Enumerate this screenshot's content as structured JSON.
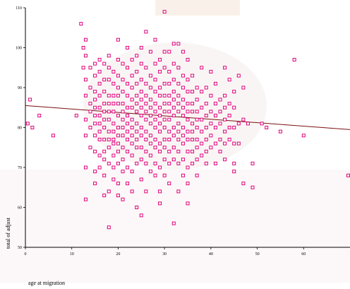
{
  "chart_data": {
    "type": "scatter",
    "title": "",
    "xlabel": "age at migration",
    "ylabel": "total of adjust",
    "xlim": [
      0,
      70
    ],
    "ylim": [
      50,
      110
    ],
    "xticks": [
      0,
      10,
      20,
      30,
      40,
      50,
      60
    ],
    "yticks": [
      50,
      60,
      70,
      80,
      90,
      100,
      110
    ],
    "grid": false,
    "colors": {
      "points": "#e0007a",
      "fit_line": "#7a1010",
      "watermark": "#f3e3e6"
    },
    "fit_line": {
      "x": [
        0,
        70
      ],
      "y": [
        85.5,
        79.5
      ]
    },
    "points": [
      [
        0.5,
        81
      ],
      [
        1,
        87
      ],
      [
        1.5,
        80
      ],
      [
        3,
        83
      ],
      [
        6,
        78
      ],
      [
        11,
        83
      ],
      [
        12,
        106
      ],
      [
        12.5,
        100
      ],
      [
        12.5,
        95
      ],
      [
        13,
        102
      ],
      [
        13,
        98
      ],
      [
        13,
        92
      ],
      [
        13,
        88
      ],
      [
        13,
        82
      ],
      [
        13,
        78
      ],
      [
        13,
        70
      ],
      [
        13,
        62
      ],
      [
        14,
        95
      ],
      [
        14,
        90
      ],
      [
        14,
        86
      ],
      [
        14,
        84
      ],
      [
        14,
        80
      ],
      [
        14,
        75
      ],
      [
        15,
        96
      ],
      [
        15,
        93
      ],
      [
        15,
        89
      ],
      [
        15,
        87
      ],
      [
        15,
        85
      ],
      [
        15,
        83
      ],
      [
        15,
        81
      ],
      [
        15,
        78
      ],
      [
        15,
        74
      ],
      [
        15,
        69
      ],
      [
        15,
        66
      ],
      [
        16,
        97
      ],
      [
        16,
        94
      ],
      [
        16,
        91
      ],
      [
        16,
        88
      ],
      [
        16,
        85
      ],
      [
        16,
        83
      ],
      [
        16,
        81
      ],
      [
        16,
        79
      ],
      [
        16,
        77
      ],
      [
        16,
        73
      ],
      [
        16,
        70
      ],
      [
        17,
        96
      ],
      [
        17,
        92
      ],
      [
        17,
        89
      ],
      [
        17,
        86
      ],
      [
        17,
        84
      ],
      [
        17,
        82
      ],
      [
        17,
        80
      ],
      [
        17,
        77
      ],
      [
        17,
        74
      ],
      [
        17,
        72
      ],
      [
        17,
        68
      ],
      [
        17,
        63
      ],
      [
        18,
        98
      ],
      [
        18,
        95
      ],
      [
        18,
        92
      ],
      [
        18,
        88
      ],
      [
        18,
        86
      ],
      [
        18,
        84
      ],
      [
        18,
        82
      ],
      [
        18,
        79
      ],
      [
        18,
        77
      ],
      [
        18,
        75
      ],
      [
        18,
        71
      ],
      [
        18,
        64
      ],
      [
        18,
        55
      ],
      [
        19,
        94
      ],
      [
        19,
        91
      ],
      [
        19,
        88
      ],
      [
        19,
        86
      ],
      [
        19,
        84
      ],
      [
        19,
        81
      ],
      [
        19,
        79
      ],
      [
        19,
        77
      ],
      [
        19,
        76
      ],
      [
        19,
        73
      ],
      [
        19,
        70
      ],
      [
        19,
        67
      ],
      [
        20,
        102
      ],
      [
        20,
        97
      ],
      [
        20,
        93
      ],
      [
        20,
        90
      ],
      [
        20,
        88
      ],
      [
        20,
        86
      ],
      [
        20,
        83
      ],
      [
        20,
        80
      ],
      [
        20,
        78
      ],
      [
        20,
        76
      ],
      [
        20,
        74
      ],
      [
        20,
        71
      ],
      [
        20,
        66
      ],
      [
        20,
        63
      ],
      [
        21,
        96
      ],
      [
        21,
        92
      ],
      [
        21,
        89
      ],
      [
        21,
        86
      ],
      [
        21,
        84
      ],
      [
        21,
        82
      ],
      [
        21,
        80
      ],
      [
        21,
        78
      ],
      [
        21,
        75
      ],
      [
        21,
        72
      ],
      [
        21,
        69
      ],
      [
        21,
        62
      ],
      [
        22,
        100
      ],
      [
        22,
        95
      ],
      [
        22,
        91
      ],
      [
        22,
        88
      ],
      [
        22,
        85
      ],
      [
        22,
        83
      ],
      [
        22,
        81
      ],
      [
        22,
        79
      ],
      [
        22,
        77
      ],
      [
        22,
        74
      ],
      [
        22,
        70
      ],
      [
        22,
        66
      ],
      [
        23,
        97
      ],
      [
        23,
        93
      ],
      [
        23,
        90
      ],
      [
        23,
        87
      ],
      [
        23,
        85
      ],
      [
        23,
        82
      ],
      [
        23,
        80
      ],
      [
        23,
        78
      ],
      [
        23,
        76
      ],
      [
        23,
        73
      ],
      [
        23,
        69
      ],
      [
        23,
        64
      ],
      [
        24,
        98
      ],
      [
        24,
        94
      ],
      [
        24,
        91
      ],
      [
        24,
        88
      ],
      [
        24,
        86
      ],
      [
        24,
        84
      ],
      [
        24,
        81
      ],
      [
        24,
        79
      ],
      [
        24,
        77
      ],
      [
        24,
        75
      ],
      [
        24,
        71
      ],
      [
        24,
        60
      ],
      [
        25,
        100
      ],
      [
        25,
        96
      ],
      [
        25,
        92
      ],
      [
        25,
        89
      ],
      [
        25,
        87
      ],
      [
        25,
        85
      ],
      [
        25,
        83
      ],
      [
        25,
        80
      ],
      [
        25,
        78
      ],
      [
        25,
        75
      ],
      [
        25,
        72
      ],
      [
        25,
        67
      ],
      [
        25,
        58
      ],
      [
        26,
        104
      ],
      [
        26,
        95
      ],
      [
        26,
        91
      ],
      [
        26,
        88
      ],
      [
        26,
        86
      ],
      [
        26,
        84
      ],
      [
        26,
        82
      ],
      [
        26,
        79
      ],
      [
        26,
        77
      ],
      [
        26,
        74
      ],
      [
        26,
        71
      ],
      [
        26,
        64
      ],
      [
        27,
        99
      ],
      [
        27,
        93
      ],
      [
        27,
        90
      ],
      [
        27,
        87
      ],
      [
        27,
        85
      ],
      [
        27,
        83
      ],
      [
        27,
        81
      ],
      [
        27,
        78
      ],
      [
        27,
        76
      ],
      [
        27,
        73
      ],
      [
        27,
        69
      ],
      [
        28,
        102
      ],
      [
        28,
        96
      ],
      [
        28,
        92
      ],
      [
        28,
        89
      ],
      [
        28,
        86
      ],
      [
        28,
        84
      ],
      [
        28,
        82
      ],
      [
        28,
        80
      ],
      [
        28,
        77
      ],
      [
        28,
        75
      ],
      [
        28,
        71
      ],
      [
        28,
        68
      ],
      [
        29,
        97
      ],
      [
        29,
        94
      ],
      [
        29,
        90
      ],
      [
        29,
        88
      ],
      [
        29,
        85
      ],
      [
        29,
        83
      ],
      [
        29,
        81
      ],
      [
        29,
        79
      ],
      [
        29,
        76
      ],
      [
        29,
        74
      ],
      [
        29,
        70
      ],
      [
        29,
        64
      ],
      [
        29,
        61
      ],
      [
        30,
        109
      ],
      [
        30,
        99
      ],
      [
        30,
        95
      ],
      [
        30,
        91
      ],
      [
        30,
        88
      ],
      [
        30,
        86
      ],
      [
        30,
        84
      ],
      [
        30,
        82
      ],
      [
        30,
        80
      ],
      [
        30,
        77
      ],
      [
        30,
        75
      ],
      [
        30,
        72
      ],
      [
        30,
        68
      ],
      [
        31,
        99
      ],
      [
        31,
        94
      ],
      [
        31,
        91
      ],
      [
        31,
        88
      ],
      [
        31,
        86
      ],
      [
        31,
        84
      ],
      [
        31,
        82
      ],
      [
        31,
        79
      ],
      [
        31,
        77
      ],
      [
        31,
        74
      ],
      [
        31,
        71
      ],
      [
        31,
        66
      ],
      [
        32,
        101
      ],
      [
        32,
        96
      ],
      [
        32,
        92
      ],
      [
        32,
        89
      ],
      [
        32,
        87
      ],
      [
        32,
        85
      ],
      [
        32,
        83
      ],
      [
        32,
        80
      ],
      [
        32,
        78
      ],
      [
        32,
        75
      ],
      [
        32,
        72
      ],
      [
        32,
        56
      ],
      [
        33,
        101
      ],
      [
        33,
        95
      ],
      [
        33,
        91
      ],
      [
        33,
        88
      ],
      [
        33,
        86
      ],
      [
        33,
        84
      ],
      [
        33,
        81
      ],
      [
        33,
        79
      ],
      [
        33,
        77
      ],
      [
        33,
        74
      ],
      [
        33,
        71
      ],
      [
        33,
        64
      ],
      [
        34,
        99
      ],
      [
        34,
        93
      ],
      [
        34,
        90
      ],
      [
        34,
        87
      ],
      [
        34,
        85
      ],
      [
        34,
        83
      ],
      [
        34,
        80
      ],
      [
        34,
        78
      ],
      [
        34,
        76
      ],
      [
        34,
        72
      ],
      [
        34,
        68
      ],
      [
        35,
        97
      ],
      [
        35,
        92
      ],
      [
        35,
        89
      ],
      [
        35,
        86
      ],
      [
        35,
        84
      ],
      [
        35,
        82
      ],
      [
        35,
        79
      ],
      [
        35,
        77
      ],
      [
        35,
        74
      ],
      [
        35,
        70
      ],
      [
        35,
        66
      ],
      [
        35,
        61
      ],
      [
        36,
        93
      ],
      [
        36,
        89
      ],
      [
        36,
        86
      ],
      [
        36,
        84
      ],
      [
        36,
        81
      ],
      [
        36,
        79
      ],
      [
        36,
        77
      ],
      [
        36,
        74
      ],
      [
        36,
        71
      ],
      [
        37,
        90
      ],
      [
        37,
        87
      ],
      [
        37,
        84
      ],
      [
        37,
        82
      ],
      [
        37,
        80
      ],
      [
        37,
        77
      ],
      [
        37,
        75
      ],
      [
        37,
        72
      ],
      [
        37,
        68
      ],
      [
        38,
        95
      ],
      [
        38,
        89
      ],
      [
        38,
        85
      ],
      [
        38,
        82
      ],
      [
        38,
        79
      ],
      [
        38,
        76
      ],
      [
        38,
        73
      ],
      [
        39,
        90
      ],
      [
        39,
        86
      ],
      [
        39,
        83
      ],
      [
        39,
        80
      ],
      [
        39,
        77
      ],
      [
        39,
        74
      ],
      [
        39,
        71
      ],
      [
        40,
        94
      ],
      [
        40,
        88
      ],
      [
        40,
        84
      ],
      [
        40,
        81
      ],
      [
        40,
        78
      ],
      [
        40,
        75
      ],
      [
        41,
        91
      ],
      [
        41,
        86
      ],
      [
        41,
        83
      ],
      [
        41,
        80
      ],
      [
        41,
        76
      ],
      [
        41,
        71
      ],
      [
        42,
        87
      ],
      [
        42,
        84
      ],
      [
        42,
        81
      ],
      [
        42,
        77
      ],
      [
        42,
        74
      ],
      [
        43,
        95
      ],
      [
        43,
        88
      ],
      [
        43,
        85
      ],
      [
        43,
        82
      ],
      [
        43,
        79
      ],
      [
        43,
        76
      ],
      [
        43,
        72
      ],
      [
        44,
        92
      ],
      [
        44,
        86
      ],
      [
        44,
        83
      ],
      [
        44,
        80
      ],
      [
        44,
        77
      ],
      [
        45,
        89
      ],
      [
        45,
        85
      ],
      [
        45,
        80
      ],
      [
        45,
        76
      ],
      [
        45,
        71
      ],
      [
        45,
        69
      ],
      [
        46,
        93
      ],
      [
        46,
        81
      ],
      [
        46,
        76
      ],
      [
        47,
        90
      ],
      [
        47,
        82
      ],
      [
        47,
        66
      ],
      [
        48,
        81
      ],
      [
        49,
        65
      ],
      [
        49,
        71
      ],
      [
        51,
        81
      ],
      [
        52,
        80
      ],
      [
        55,
        79
      ],
      [
        58,
        97
      ],
      [
        60,
        78
      ],
      [
        70,
        68
      ]
    ]
  }
}
